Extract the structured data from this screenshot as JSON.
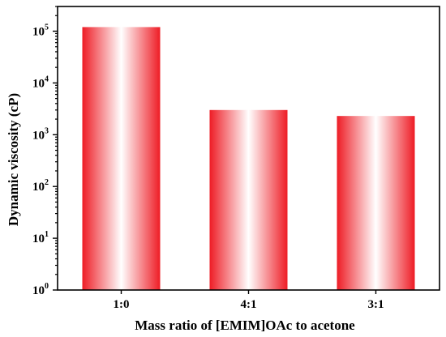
{
  "chart_data": {
    "type": "bar",
    "title": "",
    "xlabel": "Mass ratio of [EMIM]OAc to acetone",
    "ylabel": "Dynamic viscosity (cP)",
    "yscale": "log",
    "ylim": [
      1,
      300000
    ],
    "yticks": [
      {
        "value": 1,
        "base": "10",
        "exp": "0"
      },
      {
        "value": 10,
        "base": "10",
        "exp": "1"
      },
      {
        "value": 100,
        "base": "10",
        "exp": "2"
      },
      {
        "value": 1000,
        "base": "10",
        "exp": "3"
      },
      {
        "value": 10000,
        "base": "10",
        "exp": "4"
      },
      {
        "value": 100000,
        "base": "10",
        "exp": "5"
      }
    ],
    "categories": [
      "1:0",
      "4:1",
      "3:1"
    ],
    "values": [
      120000,
      3000,
      2300
    ],
    "bar_color": "#ee1c25",
    "bar_highlight": "#ffffff",
    "grid": false,
    "legend": "none"
  }
}
